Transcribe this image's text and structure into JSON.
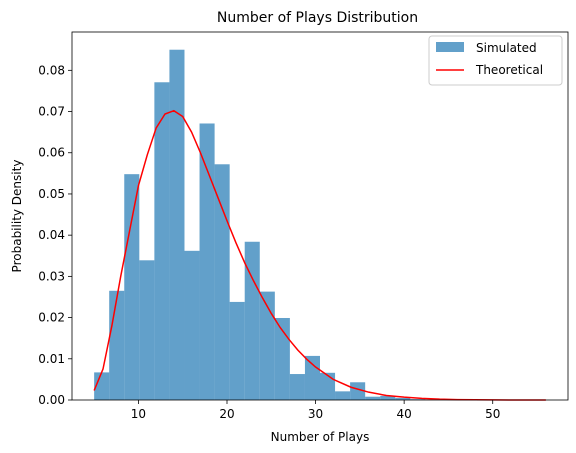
{
  "chart_data": {
    "type": "bar",
    "title": "Number of Plays Distribution",
    "xlabel": "Number of Plays",
    "ylabel": "Probability Density",
    "xlim": [
      2.5,
      58.5
    ],
    "ylim": [
      0,
      0.0893
    ],
    "x_ticks": [
      10,
      20,
      30,
      40,
      50
    ],
    "y_ticks": [
      0.0,
      0.01,
      0.02,
      0.03,
      0.04,
      0.05,
      0.06,
      0.07,
      0.08
    ],
    "y_tick_labels": [
      "0.00",
      "0.01",
      "0.02",
      "0.03",
      "0.04",
      "0.05",
      "0.06",
      "0.07",
      "0.08"
    ],
    "legend_position": "top-right",
    "grid": false,
    "series": [
      {
        "name": "Simulated",
        "kind": "histogram",
        "color": "#1f77b4",
        "opacity": 0.7,
        "bin_edges": [
          5.0,
          6.7,
          8.4,
          10.1,
          11.8,
          13.5,
          15.2,
          16.9,
          18.6,
          20.3,
          22.0,
          23.7,
          25.4,
          27.1,
          28.8,
          30.5,
          32.2,
          33.9,
          35.6,
          37.3,
          39.0,
          40.7,
          42.4
        ],
        "values": [
          0.0067,
          0.0265,
          0.0548,
          0.0339,
          0.0771,
          0.085,
          0.0362,
          0.0671,
          0.0572,
          0.0238,
          0.0384,
          0.0263,
          0.0199,
          0.0063,
          0.0107,
          0.0066,
          0.0021,
          0.0043,
          0.0008,
          0.001,
          0.0005,
          0.0002
        ]
      },
      {
        "name": "Theoretical",
        "kind": "line",
        "color": "#ff0000",
        "x": [
          5,
          6,
          7,
          8,
          9,
          10,
          11,
          12,
          13,
          14,
          15,
          16,
          17,
          18,
          19,
          20,
          21,
          22,
          23,
          24,
          25,
          26,
          27,
          28,
          29,
          30,
          32,
          34,
          36,
          38,
          40,
          42,
          44,
          46,
          48,
          50,
          52,
          54,
          56
        ],
        "values": [
          0.0023,
          0.0075,
          0.018,
          0.03,
          0.041,
          0.052,
          0.0595,
          0.066,
          0.0694,
          0.0702,
          0.0688,
          0.065,
          0.06,
          0.0545,
          0.049,
          0.0435,
          0.0382,
          0.0333,
          0.0289,
          0.0248,
          0.021,
          0.0176,
          0.0147,
          0.0121,
          0.0099,
          0.008,
          0.005,
          0.0031,
          0.0019,
          0.0011,
          0.0007,
          0.0004,
          0.0002,
          0.0001,
          5e-05,
          3e-05,
          1e-05,
          0.0,
          0.0
        ]
      }
    ]
  }
}
